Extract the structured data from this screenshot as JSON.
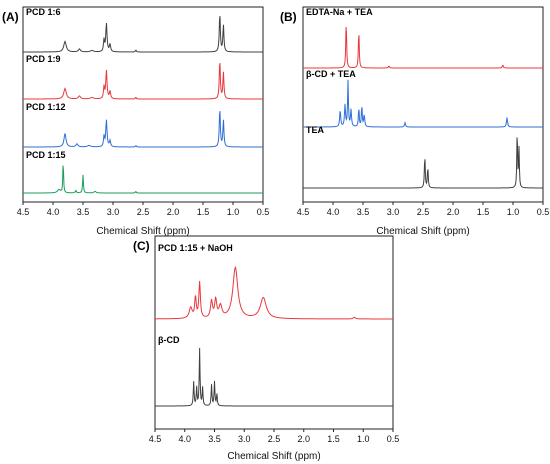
{
  "chart_data": [
    {
      "panel": "(A)",
      "type": "line",
      "xlabel": "Chemical Shift (ppm)",
      "xlim": [
        4.5,
        0.5
      ],
      "xticks": [
        "4.5",
        "4.0",
        "3.5",
        "3.0",
        "2.5",
        "2.0",
        "1.5",
        "1.0",
        "0.5"
      ],
      "grid": false,
      "series": [
        {
          "name": "PCD 1:6",
          "color": "#404040",
          "peaks": [
            [
              3.8,
              0.35,
              0.025
            ],
            [
              3.56,
              0.1,
              0.02
            ],
            [
              3.35,
              0.05,
              0.03
            ],
            [
              3.15,
              0.4,
              0.01
            ],
            [
              3.11,
              0.95,
              0.012
            ],
            [
              3.05,
              0.25,
              0.012
            ],
            [
              2.62,
              0.07,
              0.008
            ],
            [
              1.22,
              1.3,
              0.01
            ],
            [
              1.16,
              0.9,
              0.01
            ]
          ]
        },
        {
          "name": "PCD 1:9",
          "color": "#e8383d",
          "peaks": [
            [
              3.8,
              0.35,
              0.025
            ],
            [
              3.56,
              0.1,
              0.02
            ],
            [
              3.35,
              0.05,
              0.03
            ],
            [
              3.15,
              0.4,
              0.01
            ],
            [
              3.11,
              0.95,
              0.012
            ],
            [
              3.05,
              0.25,
              0.012
            ],
            [
              2.62,
              0.06,
              0.008
            ],
            [
              1.22,
              1.3,
              0.01
            ],
            [
              1.16,
              0.9,
              0.01
            ]
          ]
        },
        {
          "name": "PCD 1:12",
          "color": "#2f6ed6",
          "peaks": [
            [
              3.8,
              0.45,
              0.02
            ],
            [
              3.6,
              0.1,
              0.02
            ],
            [
              3.4,
              0.05,
              0.03
            ],
            [
              3.15,
              0.35,
              0.01
            ],
            [
              3.11,
              0.9,
              0.012
            ],
            [
              3.05,
              0.2,
              0.012
            ],
            [
              2.62,
              0.05,
              0.008
            ],
            [
              1.22,
              1.3,
              0.01
            ],
            [
              1.16,
              0.9,
              0.01
            ]
          ]
        },
        {
          "name": "PCD 1:15",
          "color": "#1a9e5a",
          "peaks": [
            [
              3.9,
              0.1,
              0.03
            ],
            [
              3.83,
              1.0,
              0.007
            ],
            [
              3.62,
              0.08,
              0.01
            ],
            [
              3.5,
              0.55,
              0.008
            ],
            [
              3.3,
              0.05,
              0.02
            ],
            [
              2.62,
              0.05,
              0.008
            ]
          ]
        }
      ]
    },
    {
      "panel": "(B)",
      "type": "line",
      "xlabel": "Chemical Shift (ppm)",
      "xlim": [
        4.5,
        0.5
      ],
      "xticks": [
        "4.5",
        "4.0",
        "3.5",
        "3.0",
        "2.5",
        "2.0",
        "1.5",
        "1.0",
        "0.5"
      ],
      "grid": false,
      "series": [
        {
          "name": "EDTA-Na + TEA",
          "color": "#e8383d",
          "peaks": [
            [
              3.78,
              1.0,
              0.008
            ],
            [
              3.57,
              0.8,
              0.008
            ],
            [
              3.07,
              0.04,
              0.01
            ],
            [
              1.17,
              0.06,
              0.01
            ]
          ]
        },
        {
          "name": "β-CD + TEA",
          "color": "#2f6ed6",
          "peaks": [
            [
              3.88,
              0.35,
              0.01
            ],
            [
              3.8,
              0.45,
              0.01
            ],
            [
              3.75,
              0.95,
              0.008
            ],
            [
              3.7,
              0.35,
              0.01
            ],
            [
              3.57,
              0.4,
              0.008
            ],
            [
              3.52,
              0.45,
              0.008
            ],
            [
              3.48,
              0.25,
              0.01
            ],
            [
              2.8,
              0.09,
              0.01
            ],
            [
              1.1,
              0.2,
              0.01
            ]
          ]
        },
        {
          "name": "TEA",
          "color": "#404040",
          "peaks": [
            [
              2.47,
              0.55,
              0.008
            ],
            [
              2.42,
              0.35,
              0.008
            ],
            [
              0.93,
              1.0,
              0.007
            ],
            [
              0.9,
              0.65,
              0.007
            ]
          ]
        }
      ]
    },
    {
      "panel": "(C)",
      "type": "line",
      "xlabel": "Chemical Shift (ppm)",
      "xlim": [
        4.5,
        0.5
      ],
      "xticks": [
        "4.5",
        "4.0",
        "3.5",
        "3.0",
        "2.5",
        "2.0",
        "1.5",
        "1.0",
        "0.5"
      ],
      "grid": false,
      "series": [
        {
          "name": "PCD 1:15 + NaOH",
          "color": "#e8383d",
          "peaks": [
            [
              3.9,
              0.18,
              0.03
            ],
            [
              3.82,
              0.35,
              0.015
            ],
            [
              3.75,
              0.6,
              0.015
            ],
            [
              3.55,
              0.28,
              0.02
            ],
            [
              3.48,
              0.3,
              0.02
            ],
            [
              3.4,
              0.2,
              0.03
            ],
            [
              3.15,
              0.85,
              0.05
            ],
            [
              2.68,
              0.35,
              0.06
            ],
            [
              1.15,
              0.03,
              0.02
            ]
          ]
        },
        {
          "name": "β-CD",
          "color": "#404040",
          "peaks": [
            [
              3.85,
              0.4,
              0.008
            ],
            [
              3.8,
              0.3,
              0.008
            ],
            [
              3.75,
              0.95,
              0.008
            ],
            [
              3.7,
              0.3,
              0.008
            ],
            [
              3.55,
              0.35,
              0.008
            ],
            [
              3.5,
              0.4,
              0.008
            ],
            [
              3.46,
              0.2,
              0.008
            ]
          ]
        }
      ]
    }
  ]
}
